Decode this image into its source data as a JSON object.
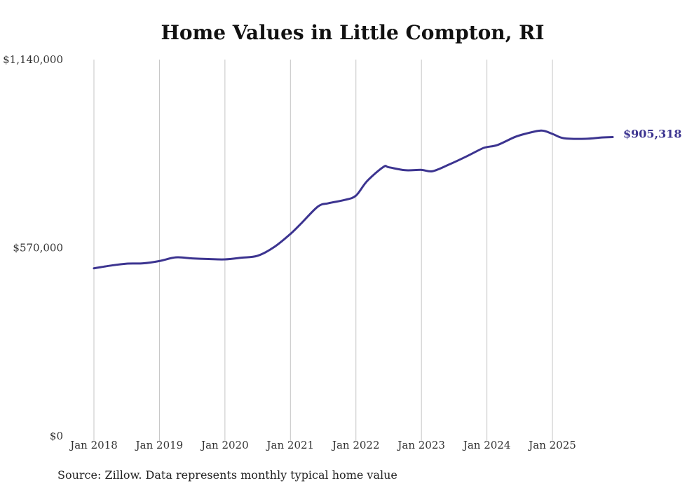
{
  "chart_data": {
    "type": "line",
    "title": "Home Values in Little Compton, RI",
    "xlabel": "",
    "ylabel": "",
    "ylim": [
      0,
      1140000
    ],
    "yticks": [
      {
        "value": 0,
        "label": "$0"
      },
      {
        "value": 570000,
        "label": "$570,000"
      },
      {
        "value": 1140000,
        "label": "$1,140,000"
      }
    ],
    "xticks": [
      {
        "value": 2018.0,
        "label": "Jan 2018"
      },
      {
        "value": 2019.0,
        "label": "Jan 2019"
      },
      {
        "value": 2020.0,
        "label": "Jan 2020"
      },
      {
        "value": 2021.0,
        "label": "Jan 2021"
      },
      {
        "value": 2022.0,
        "label": "Jan 2022"
      },
      {
        "value": 2023.0,
        "label": "Jan 2023"
      },
      {
        "value": 2024.0,
        "label": "Jan 2024"
      },
      {
        "value": 2025.0,
        "label": "Jan 2025"
      }
    ],
    "xlim": [
      2018.0,
      2025.92
    ],
    "grid": "vertical",
    "end_label": "$905,318",
    "series": [
      {
        "name": "Typical home value",
        "color": "#3c3490",
        "x": [
          2018.0,
          2018.25,
          2018.5,
          2018.75,
          2019.0,
          2019.25,
          2019.5,
          2019.75,
          2020.0,
          2020.25,
          2020.5,
          2020.75,
          2021.0,
          2021.17,
          2021.42,
          2021.58,
          2021.83,
          2022.0,
          2022.17,
          2022.42,
          2022.5,
          2022.75,
          2023.0,
          2023.17,
          2023.42,
          2023.67,
          2023.92,
          2024.0,
          2024.17,
          2024.42,
          2024.58,
          2024.83,
          2025.0,
          2025.17,
          2025.5,
          2025.75,
          2025.92
        ],
        "y": [
          508000,
          516000,
          522000,
          523000,
          530000,
          541000,
          538000,
          536000,
          535000,
          540000,
          546000,
          572000,
          612000,
          645000,
          695000,
          705000,
          715000,
          728000,
          772000,
          815000,
          814000,
          805000,
          806000,
          802000,
          822000,
          845000,
          870000,
          875000,
          882000,
          905000,
          915000,
          925000,
          915000,
          902000,
          900000,
          904000,
          905318
        ]
      }
    ]
  },
  "footer": {
    "source": "Source: Zillow. Data represents monthly typical home value"
  }
}
